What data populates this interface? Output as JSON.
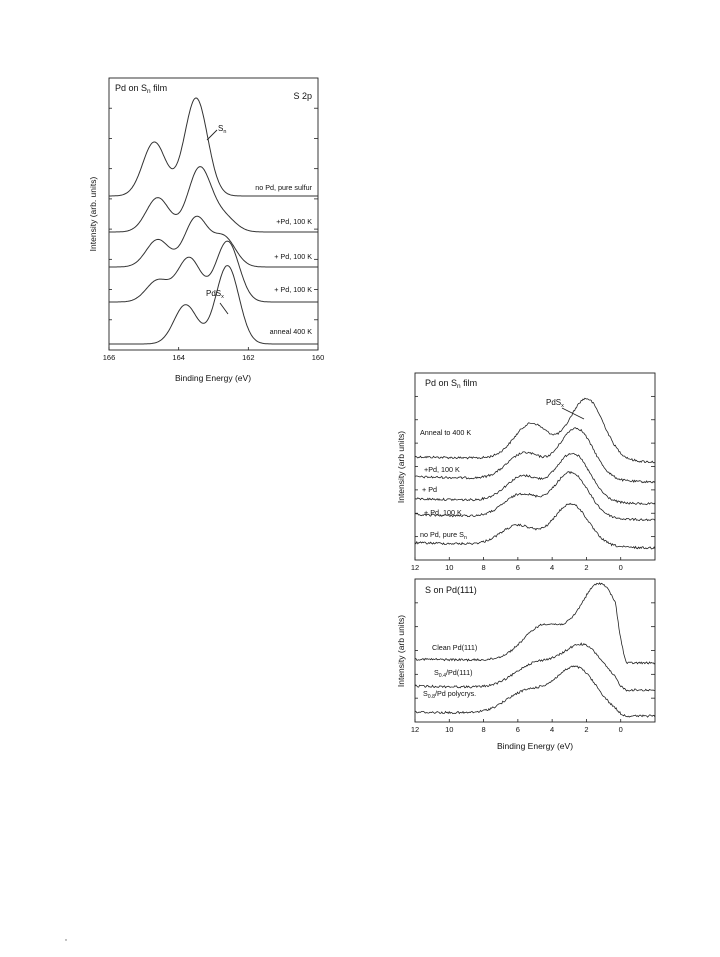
{
  "chart_data": [
    {
      "type": "line",
      "title": "Pd on S_n film",
      "subtitle": "S 2p",
      "xlabel": "Binding  Energy  (eV)",
      "ylabel": "Intensity  (arb. units)",
      "xlim": [
        166,
        160
      ],
      "x_ticks": [
        "166",
        "164",
        "162",
        "160"
      ],
      "annotations": [
        {
          "base": "S",
          "sub": "n"
        },
        {
          "base": "PdS",
          "sub": "x"
        }
      ],
      "series": [
        {
          "name": "no Pd, pure sulfur",
          "peaks": [
            {
              "x": 164.7,
              "h": 0.55
            },
            {
              "x": 163.5,
              "h": 1.0
            }
          ]
        },
        {
          "name": "+Pd, 100 K",
          "peaks": [
            {
              "x": 164.6,
              "h": 0.35
            },
            {
              "x": 163.4,
              "h": 0.65
            },
            {
              "x": 162.7,
              "h": 0.15
            }
          ]
        },
        {
          "name": "+ Pd, 100 K",
          "peaks": [
            {
              "x": 164.6,
              "h": 0.28
            },
            {
              "x": 163.5,
              "h": 0.5
            },
            {
              "x": 162.7,
              "h": 0.3
            }
          ]
        },
        {
          "name": "+ Pd, 100 K",
          "peaks": [
            {
              "x": 164.6,
              "h": 0.22
            },
            {
              "x": 163.7,
              "h": 0.45
            },
            {
              "x": 162.6,
              "h": 0.62
            }
          ]
        },
        {
          "name": "anneal 400 K",
          "peaks": [
            {
              "x": 163.8,
              "h": 0.4
            },
            {
              "x": 162.6,
              "h": 0.8
            }
          ]
        }
      ]
    },
    {
      "type": "line",
      "title": "Pd on S_n film",
      "xlabel": "",
      "ylabel": "Intensity  (arb units)",
      "xlim": [
        12,
        -2
      ],
      "x_ticks": [
        "12",
        "10",
        "8",
        "6",
        "4",
        "2",
        "0"
      ],
      "annotations": [
        {
          "base": "PdS",
          "sub": "x"
        }
      ],
      "series": [
        {
          "name": "Anneal to 400 K",
          "peaks": [
            {
              "x": 5.2,
              "h": 0.55
            },
            {
              "x": 2.0,
              "h": 0.95
            }
          ]
        },
        {
          "name": "+Pd, 100 K",
          "peaks": [
            {
              "x": 5.6,
              "h": 0.4
            },
            {
              "x": 2.6,
              "h": 0.8
            }
          ]
        },
        {
          "name": "+ Pd",
          "peaks": [
            {
              "x": 5.7,
              "h": 0.38
            },
            {
              "x": 2.8,
              "h": 0.75
            }
          ]
        },
        {
          "name": "+ Pd, 100 K",
          "peaks": [
            {
              "x": 5.8,
              "h": 0.35
            },
            {
              "x": 2.9,
              "h": 0.7
            }
          ]
        },
        {
          "name": "no Pd, pure S_n",
          "peaks": [
            {
              "x": 6.0,
              "h": 0.3
            },
            {
              "x": 2.9,
              "h": 0.65
            }
          ]
        }
      ]
    },
    {
      "type": "line",
      "title": "S on Pd(111)",
      "xlabel": "Binding  Energy  (eV)",
      "ylabel": "Intensity  (arb units)",
      "xlim": [
        12,
        -2
      ],
      "x_ticks": [
        "12",
        "10",
        "8",
        "6",
        "4",
        "2",
        "0"
      ],
      "series": [
        {
          "name": "Clean Pd(111)",
          "peaks": [
            {
              "x": 4.5,
              "h": 0.45
            },
            {
              "x": 1.2,
              "h": 1.0
            }
          ]
        },
        {
          "name": "S_0.4/Pd(111)",
          "peaks": [
            {
              "x": 5.0,
              "h": 0.3
            },
            {
              "x": 2.2,
              "h": 0.55
            }
          ]
        },
        {
          "name": "S_0.8/Pd polycrys.",
          "peaks": [
            {
              "x": 5.5,
              "h": 0.28
            },
            {
              "x": 2.6,
              "h": 0.6
            }
          ]
        }
      ]
    }
  ]
}
